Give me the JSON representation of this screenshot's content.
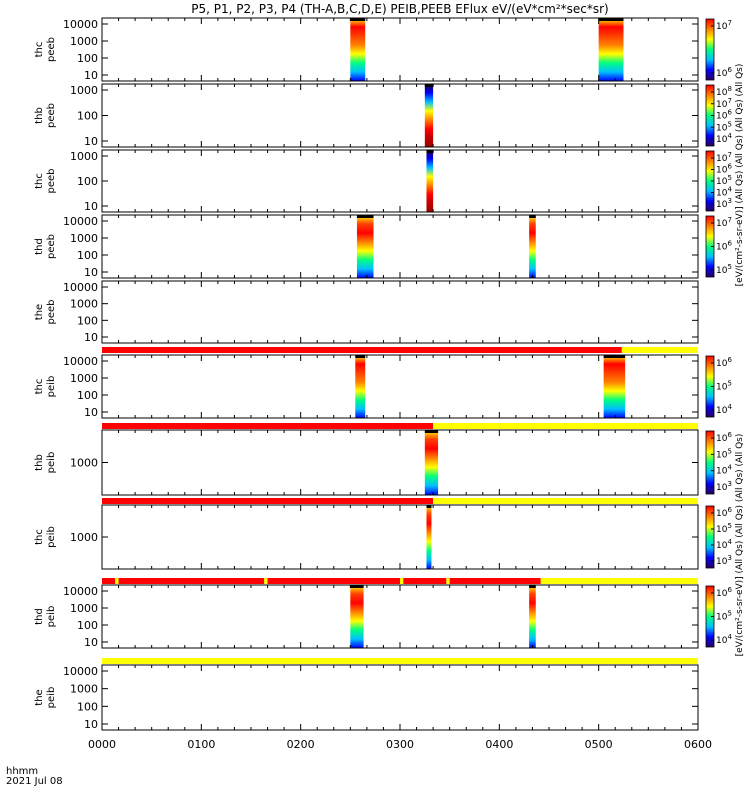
{
  "title": "P5, P1, P2, P3, P4 (TH-A,B,C,D,E) PEIB,PEEB EFlux eV/(eV*cm²*sec*sr)",
  "colorbar_labels": {
    "peeb": "[eV/(cm²-s-sr-eV)] (All Qs) (All Qs) (All Qs) (All Qs)",
    "peib": "[eV/(cm²-s-sr-eV)] (All Qs) (All Qs) (All Qs) (All Qs)"
  },
  "xaxis": {
    "label": "hhmm",
    "date": "2021 Jul 08",
    "ticks": [
      "0000",
      "0100",
      "0200",
      "0300",
      "0400",
      "0500",
      "0600"
    ]
  },
  "colors": {
    "mode_full": "#ff0000",
    "mode_slow": "#ffff00",
    "spectrogram_scale": [
      "#2a0060",
      "#0000ff",
      "#00c0ff",
      "#00ff80",
      "#ffff00",
      "#ff8000",
      "#ff0000"
    ]
  },
  "chart_data": {
    "type": "heatmap",
    "x_units": "minutes since 0000 UT",
    "xlim": [
      0,
      360
    ],
    "panels": [
      {
        "name": "thc peeb",
        "ylabel": "thc\npeeb",
        "yticks": [
          "10",
          "100",
          "1000",
          "10000"
        ],
        "bursts": [
          {
            "x": [
              150,
              159
            ],
            "profile": "high"
          },
          {
            "x": [
              300,
              315
            ],
            "profile": "high"
          }
        ],
        "cbar_ticks": [
          "10^6",
          "10^7"
        ],
        "mode_bar": null
      },
      {
        "name": "thb peeb",
        "ylabel": "thb\npeeb",
        "yticks": [
          "10",
          "100",
          "1000"
        ],
        "bursts": [
          {
            "x": [
              195,
              200
            ],
            "profile": "rising"
          }
        ],
        "cbar_ticks": [
          "10^4",
          "10^5",
          "10^6",
          "10^7",
          "10^8"
        ],
        "mode_bar": null
      },
      {
        "name": "thc peeb 2",
        "ylabel": "thc\npeeb",
        "yticks": [
          "10",
          "100",
          "1000"
        ],
        "bursts": [
          {
            "x": [
              196,
              200
            ],
            "profile": "rising"
          }
        ],
        "cbar_ticks": [
          "10^3",
          "10^4",
          "10^5",
          "10^6",
          "10^7"
        ],
        "mode_bar": null
      },
      {
        "name": "thd peeb",
        "ylabel": "thd\npeeb",
        "yticks": [
          "10",
          "100",
          "1000",
          "10000"
        ],
        "bursts": [
          {
            "x": [
              154,
              164
            ],
            "profile": "mid"
          },
          {
            "x": [
              258,
              262
            ],
            "profile": "mid"
          }
        ],
        "cbar_ticks": [
          "10^5",
          "10^6",
          "10^7"
        ],
        "mode_bar": null
      },
      {
        "name": "the peeb",
        "ylabel": "the\npeeb",
        "yticks": [
          "10",
          "100",
          "1000",
          "10000"
        ],
        "bursts": [],
        "cbar_ticks": [],
        "mode_bar": null
      },
      {
        "name": "thc peib",
        "ylabel": "thc\npeib",
        "yticks": [
          "10",
          "100",
          "1000",
          "10000"
        ],
        "bursts": [
          {
            "x": [
              153,
              159
            ],
            "profile": "high"
          },
          {
            "x": [
              303,
              316
            ],
            "profile": "high"
          }
        ],
        "cbar_ticks": [
          "10^4",
          "10^5",
          "10^6"
        ],
        "mode_bar": [
          {
            "x": [
              0,
              314
            ],
            "mode": "full"
          },
          {
            "x": [
              314,
              360
            ],
            "mode": "slow"
          }
        ]
      },
      {
        "name": "thb peib",
        "ylabel": "thb\npeib",
        "yticks": [
          "1000"
        ],
        "bursts": [
          {
            "x": [
              195,
              203
            ],
            "profile": "mid"
          }
        ],
        "cbar_ticks": [
          "10^3",
          "10^4",
          "10^5",
          "10^6"
        ],
        "mode_bar": [
          {
            "x": [
              0,
              200
            ],
            "mode": "full"
          },
          {
            "x": [
              200,
              360
            ],
            "mode": "slow"
          }
        ]
      },
      {
        "name": "thc peib 2",
        "ylabel": "thc\npeib",
        "yticks": [
          "1000"
        ],
        "bursts": [
          {
            "x": [
              196,
              199
            ],
            "profile": "mid"
          }
        ],
        "cbar_ticks": [
          "10^3",
          "10^4",
          "10^5",
          "10^6"
        ],
        "mode_bar": [
          {
            "x": [
              0,
              200
            ],
            "mode": "full"
          },
          {
            "x": [
              200,
              360
            ],
            "mode": "slow"
          }
        ]
      },
      {
        "name": "thd peib",
        "ylabel": "thd\npeib",
        "yticks": [
          "10",
          "100",
          "1000",
          "10000"
        ],
        "bursts": [
          {
            "x": [
              150,
              158
            ],
            "profile": "mid"
          },
          {
            "x": [
              258,
              262
            ],
            "profile": "mid"
          }
        ],
        "cbar_ticks": [
          "10^4",
          "10^5",
          "10^6"
        ],
        "mode_bar": [
          {
            "x": [
              0,
              8
            ],
            "mode": "full"
          },
          {
            "x": [
              8,
              10
            ],
            "mode": "slow"
          },
          {
            "x": [
              10,
              98
            ],
            "mode": "full"
          },
          {
            "x": [
              98,
              100
            ],
            "mode": "slow"
          },
          {
            "x": [
              100,
              180
            ],
            "mode": "full"
          },
          {
            "x": [
              180,
              182
            ],
            "mode": "slow"
          },
          {
            "x": [
              182,
              208
            ],
            "mode": "full"
          },
          {
            "x": [
              208,
              210
            ],
            "mode": "slow"
          },
          {
            "x": [
              210,
              265
            ],
            "mode": "full"
          },
          {
            "x": [
              265,
              360
            ],
            "mode": "slow"
          }
        ]
      },
      {
        "name": "the peib",
        "ylabel": "the\npeib",
        "yticks": [
          "10",
          "100",
          "1000",
          "10000"
        ],
        "bursts": [],
        "cbar_ticks": [],
        "mode_bar": [
          {
            "x": [
              0,
              360
            ],
            "mode": "slow"
          }
        ]
      }
    ]
  }
}
